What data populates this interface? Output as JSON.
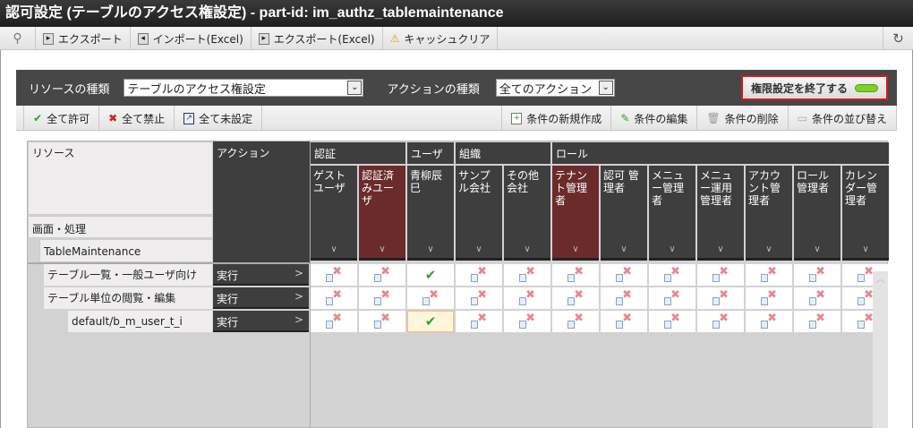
{
  "title": "認可設定 (テーブルのアクセス権設定) - part-id: im_authz_tablemaintenance",
  "toolbar": {
    "items": [
      {
        "label": "",
        "icon": "search-icon"
      },
      {
        "label": "エクスポート",
        "icon": "export-icon"
      },
      {
        "label": "インポート(Excel)",
        "icon": "import-icon"
      },
      {
        "label": "エクスポート(Excel)",
        "icon": "export-icon"
      },
      {
        "label": "キャッシュクリア",
        "icon": "warning-icon"
      }
    ],
    "refresh_icon": "refresh-icon"
  },
  "panel": {
    "resource_type_label": "リソースの種類",
    "resource_type_value": "テーブルのアクセス権設定",
    "action_type_label": "アクションの種類",
    "action_type_value": "全てのアクション",
    "end_button": "権限設定を終了する",
    "end_indicator_color": "#7dd321"
  },
  "actions": {
    "allow_all": "全て許可",
    "deny_all": "全て禁止",
    "unset_all": "全て未設定",
    "new_condition": "条件の新規作成",
    "edit_condition": "条件の編集",
    "delete_condition": "条件の削除",
    "sort_condition": "条件の並び替え"
  },
  "grid": {
    "resource_header": "リソース",
    "action_header": "アクション",
    "level1": "画面・処理",
    "level2": "TableMaintenance",
    "groups": [
      {
        "label": "認証",
        "span": 2
      },
      {
        "label": "ユーザ",
        "span": 1
      },
      {
        "label": "組織",
        "span": 2
      },
      {
        "label": "ロール",
        "span": 7
      }
    ],
    "columns": [
      {
        "label": "ゲストユーザ",
        "hl": false
      },
      {
        "label": "認証済みユーザ",
        "hl": true
      },
      {
        "label": "青柳辰巳",
        "hl": false
      },
      {
        "label": "サンプル会社",
        "hl": false
      },
      {
        "label": "その他会社",
        "hl": false
      },
      {
        "label": "テナント管理者",
        "hl": true
      },
      {
        "label": "認可 管理者",
        "hl": false
      },
      {
        "label": "メニュー管理者",
        "hl": false
      },
      {
        "label": "メニュー運用管理者",
        "hl": false
      },
      {
        "label": "アカウント管理者",
        "hl": false
      },
      {
        "label": "ロール管理者",
        "hl": false
      },
      {
        "label": "カレンダー管理者",
        "hl": false
      }
    ],
    "highlight_color": "#6b2b2b",
    "rows": [
      {
        "resource": "テーブル一覧・一般ユーザ向け",
        "indent": 1,
        "action": "実行",
        "cells": [
          "deny",
          "deny",
          "allow",
          "deny",
          "deny",
          "deny",
          "deny",
          "deny",
          "deny",
          "deny",
          "deny",
          "deny"
        ]
      },
      {
        "resource": "テーブル単位の閲覧・編集",
        "indent": 1,
        "action": "実行",
        "cells": [
          "deny",
          "deny",
          "deny",
          "deny",
          "deny",
          "deny",
          "deny",
          "deny",
          "deny",
          "deny",
          "deny",
          "deny"
        ]
      },
      {
        "resource": "default/b_m_user_t_i",
        "indent": 2,
        "action": "実行",
        "cells": [
          "deny",
          "deny",
          "allow",
          "deny",
          "deny",
          "deny",
          "deny",
          "deny",
          "deny",
          "deny",
          "deny",
          "deny"
        ],
        "selected_cell": 2
      }
    ]
  }
}
